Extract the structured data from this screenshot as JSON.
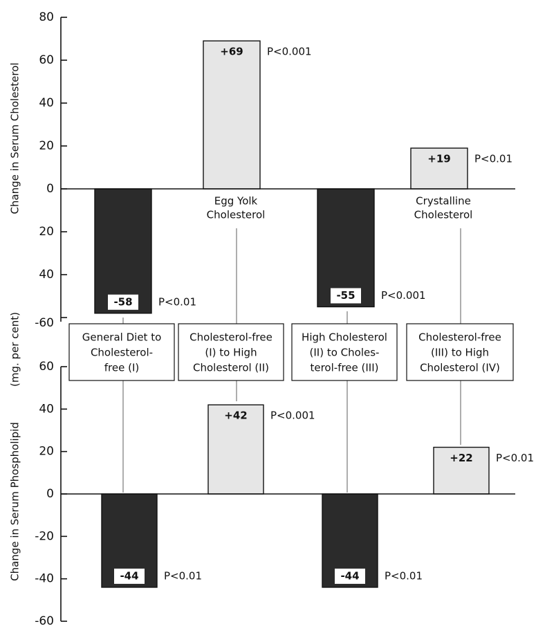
{
  "y_label_top": "Change in Serum Cholesterol",
  "y_label_mid": "(mg. per cent)",
  "y_label_bottom": "Change in Serum Phospholipid",
  "transitions": [
    [
      "General Diet to",
      "Cholesterol-",
      "free (I)"
    ],
    [
      "Cholesterol-free",
      "(I) to High",
      "Cholesterol (II)"
    ],
    [
      "High Cholesterol",
      "(II) to Choles-",
      "terol-free (III)"
    ],
    [
      "Cholesterol-free",
      "(III) to High",
      "Cholesterol (IV)"
    ]
  ],
  "chart_data": [
    {
      "type": "bar",
      "values": [
        -58,
        69,
        -55,
        19
      ],
      "value_labels": [
        "-58",
        "+69",
        "-55",
        "+19"
      ],
      "significance": [
        "P<0.01",
        "P<0.001",
        "P<0.001",
        "P<0.01"
      ],
      "bar_notes": [
        null,
        [
          "Egg Yolk",
          "Cholesterol"
        ],
        null,
        [
          "Crystalline",
          "Cholesterol"
        ]
      ],
      "colors": [
        "#2b2b2b",
        "#e6e6e6",
        "#2b2b2b",
        "#e6e6e6"
      ],
      "ylim": [
        -60,
        80
      ],
      "yticks": [
        80,
        60,
        40,
        20,
        0,
        {
          "value": -20,
          "label": "20"
        },
        {
          "value": -40,
          "label": "40"
        },
        -60
      ]
    },
    {
      "type": "bar",
      "values": [
        -44,
        42,
        -44,
        22
      ],
      "value_labels": [
        "-44",
        "+42",
        "-44",
        "+22"
      ],
      "significance": [
        "P<0.01",
        "P<0.001",
        "P<0.01",
        "P<0.01"
      ],
      "colors": [
        "#2b2b2b",
        "#e6e6e6",
        "#2b2b2b",
        "#e6e6e6"
      ],
      "ylim": [
        -60,
        60
      ],
      "yticks": [
        60,
        40,
        20,
        0,
        -20,
        -40,
        -60
      ]
    }
  ]
}
